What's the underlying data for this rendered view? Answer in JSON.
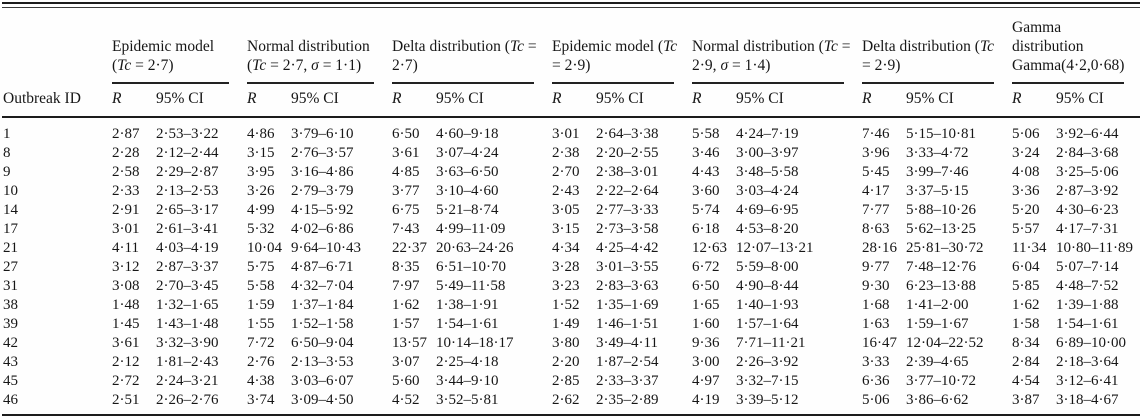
{
  "table": {
    "row_header_label": "Outbreak ID",
    "sub_headers": {
      "r": "R",
      "ci": "95% CI"
    },
    "groups": [
      {
        "title": "Epidemic model (Tc = 2·7)"
      },
      {
        "title": "Normal distribution (Tc = 2·7, σ = 1·1)"
      },
      {
        "title": "Delta distribution (Tc = 2·7)"
      },
      {
        "title": "Epidemic model (Tc = 2·9)"
      },
      {
        "title": "Normal distribution (Tc = 2·9, σ = 1·4)"
      },
      {
        "title": "Delta distribution (Tc = 2·9)"
      },
      {
        "title": "Gamma distribution Gamma(4·2,0·68)"
      }
    ],
    "rows": [
      {
        "id": "1",
        "cells": [
          [
            "2·87",
            "2·53–3·22"
          ],
          [
            "4·86",
            "3·79–6·10"
          ],
          [
            "6·50",
            "4·60–9·18"
          ],
          [
            "3·01",
            "2·64–3·38"
          ],
          [
            "5·58",
            "4·24–7·19"
          ],
          [
            "7·46",
            "5·15–10·81"
          ],
          [
            "5·06",
            "3·92–6·44"
          ]
        ]
      },
      {
        "id": "8",
        "cells": [
          [
            "2·28",
            "2·12–2·44"
          ],
          [
            "3·15",
            "2·76–3·57"
          ],
          [
            "3·61",
            "3·07–4·24"
          ],
          [
            "2·38",
            "2·20–2·55"
          ],
          [
            "3·46",
            "3·00–3·97"
          ],
          [
            "3·96",
            "3·33–4·72"
          ],
          [
            "3·24",
            "2·84–3·68"
          ]
        ]
      },
      {
        "id": "9",
        "cells": [
          [
            "2·58",
            "2·29–2·87"
          ],
          [
            "3·95",
            "3·16–4·86"
          ],
          [
            "4·85",
            "3·63–6·50"
          ],
          [
            "2·70",
            "2·38–3·01"
          ],
          [
            "4·43",
            "3·48–5·58"
          ],
          [
            "5·45",
            "3·99–7·46"
          ],
          [
            "4·08",
            "3·25–5·06"
          ]
        ]
      },
      {
        "id": "10",
        "cells": [
          [
            "2·33",
            "2·13–2·53"
          ],
          [
            "3·26",
            "2·79–3·79"
          ],
          [
            "3·77",
            "3·10–4·60"
          ],
          [
            "2·43",
            "2·22–2·64"
          ],
          [
            "3·60",
            "3·03–4·24"
          ],
          [
            "4·17",
            "3·37–5·15"
          ],
          [
            "3·36",
            "2·87–3·92"
          ]
        ]
      },
      {
        "id": "14",
        "cells": [
          [
            "2·91",
            "2·65–3·17"
          ],
          [
            "4·99",
            "4·15–5·92"
          ],
          [
            "6·75",
            "5·21–8·74"
          ],
          [
            "3·05",
            "2·77–3·33"
          ],
          [
            "5·74",
            "4·69–6·95"
          ],
          [
            "7·77",
            "5·88–10·26"
          ],
          [
            "5·20",
            "4·30–6·23"
          ]
        ]
      },
      {
        "id": "17",
        "cells": [
          [
            "3·01",
            "2·61–3·41"
          ],
          [
            "5·32",
            "4·02–6·86"
          ],
          [
            "7·43",
            "4·99–11·09"
          ],
          [
            "3·15",
            "2·73–3·58"
          ],
          [
            "6·18",
            "4·53–8·20"
          ],
          [
            "8·63",
            "5·62–13·25"
          ],
          [
            "5·57",
            "4·17–7·31"
          ]
        ]
      },
      {
        "id": "21",
        "cells": [
          [
            "4·11",
            "4·03–4·19"
          ],
          [
            "10·04",
            "9·64–10·43"
          ],
          [
            "22·37",
            "20·63–24·26"
          ],
          [
            "4·34",
            "4·25–4·42"
          ],
          [
            "12·63",
            "12·07–13·21"
          ],
          [
            "28·16",
            "25·81–30·72"
          ],
          [
            "11·34",
            "10·80–11·89"
          ]
        ]
      },
      {
        "id": "27",
        "cells": [
          [
            "3·12",
            "2·87–3·37"
          ],
          [
            "5·75",
            "4·87–6·71"
          ],
          [
            "8·35",
            "6·51–10·70"
          ],
          [
            "3·28",
            "3·01–3·55"
          ],
          [
            "6·72",
            "5·59–8·00"
          ],
          [
            "9·77",
            "7·48–12·76"
          ],
          [
            "6·04",
            "5·07–7·14"
          ]
        ]
      },
      {
        "id": "31",
        "cells": [
          [
            "3·08",
            "2·70–3·45"
          ],
          [
            "5·58",
            "4·32–7·04"
          ],
          [
            "7·97",
            "5·49–11·58"
          ],
          [
            "3·23",
            "2·83–3·63"
          ],
          [
            "6·50",
            "4·90–8·44"
          ],
          [
            "9·30",
            "6·23–13·88"
          ],
          [
            "5·85",
            "4·48–7·52"
          ]
        ]
      },
      {
        "id": "38",
        "cells": [
          [
            "1·48",
            "1·32–1·65"
          ],
          [
            "1·59",
            "1·37–1·84"
          ],
          [
            "1·62",
            "1·38–1·91"
          ],
          [
            "1·52",
            "1·35–1·69"
          ],
          [
            "1·65",
            "1·40–1·93"
          ],
          [
            "1·68",
            "1·41–2·00"
          ],
          [
            "1·62",
            "1·39–1·88"
          ]
        ]
      },
      {
        "id": "39",
        "cells": [
          [
            "1·45",
            "1·43–1·48"
          ],
          [
            "1·55",
            "1·52–1·58"
          ],
          [
            "1·57",
            "1·54–1·61"
          ],
          [
            "1·49",
            "1·46–1·51"
          ],
          [
            "1·60",
            "1·57–1·64"
          ],
          [
            "1·63",
            "1·59–1·67"
          ],
          [
            "1·58",
            "1·54–1·61"
          ]
        ]
      },
      {
        "id": "42",
        "cells": [
          [
            "3·61",
            "3·32–3·90"
          ],
          [
            "7·72",
            "6·50–9·04"
          ],
          [
            "13·57",
            "10·14–18·17"
          ],
          [
            "3·80",
            "3·49–4·11"
          ],
          [
            "9·36",
            "7·71–11·21"
          ],
          [
            "16·47",
            "12·04–22·52"
          ],
          [
            "8·34",
            "6·89–10·00"
          ]
        ]
      },
      {
        "id": "43",
        "cells": [
          [
            "2·12",
            "1·81–2·43"
          ],
          [
            "2·76",
            "2·13–3·53"
          ],
          [
            "3·07",
            "2·25–4·18"
          ],
          [
            "2·20",
            "1·87–2·54"
          ],
          [
            "3·00",
            "2·26–3·92"
          ],
          [
            "3·33",
            "2·39–4·65"
          ],
          [
            "2·84",
            "2·18–3·64"
          ]
        ]
      },
      {
        "id": "45",
        "cells": [
          [
            "2·72",
            "2·24–3·21"
          ],
          [
            "4·38",
            "3·03–6·07"
          ],
          [
            "5·60",
            "3·44–9·10"
          ],
          [
            "2·85",
            "2·33–3·37"
          ],
          [
            "4·97",
            "3·32–7·15"
          ],
          [
            "6·36",
            "3·77–10·72"
          ],
          [
            "4·54",
            "3·12–6·41"
          ]
        ]
      },
      {
        "id": "46",
        "cells": [
          [
            "2·51",
            "2·26–2·76"
          ],
          [
            "3·74",
            "3·09–4·50"
          ],
          [
            "4·52",
            "3·52–5·81"
          ],
          [
            "2·62",
            "2·35–2·89"
          ],
          [
            "4·19",
            "3·39–5·12"
          ],
          [
            "5·06",
            "3·86–6·62"
          ],
          [
            "3·87",
            "3·18–4·67"
          ]
        ]
      }
    ]
  }
}
